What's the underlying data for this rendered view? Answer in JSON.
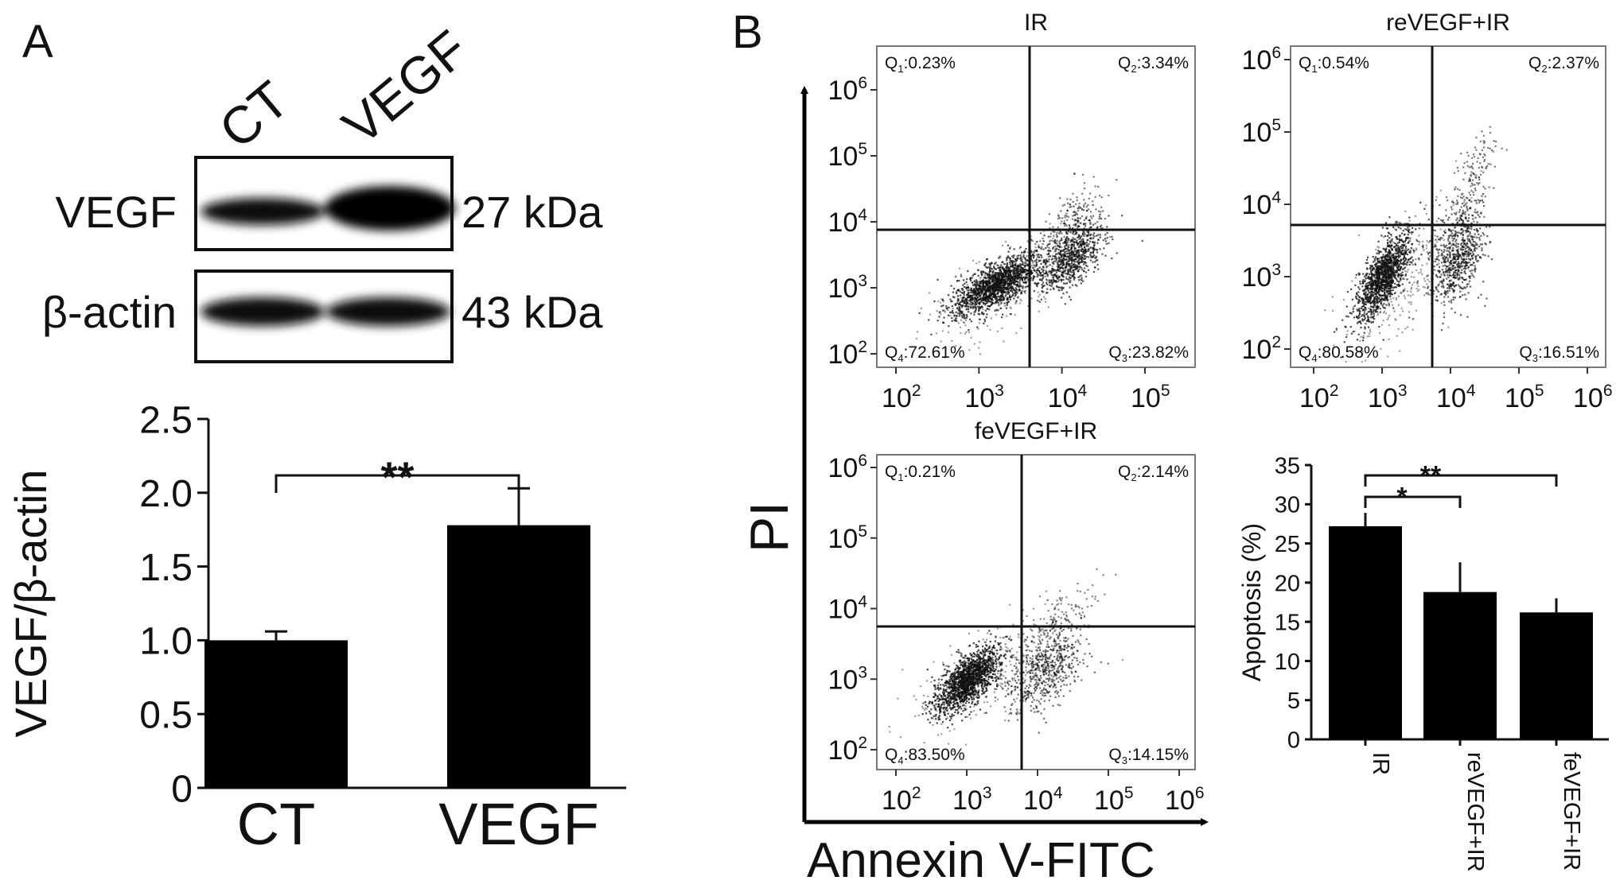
{
  "panels": {
    "a_label": "A",
    "b_label": "B"
  },
  "western_blot": {
    "lanes": [
      "CT",
      "VEGF"
    ],
    "rows": [
      {
        "protein": "VEGF",
        "size": "27 kDa"
      },
      {
        "protein": "β-actin",
        "size": "43 kDa"
      }
    ]
  },
  "flow_axes": {
    "y_label": "PI",
    "x_label": "Annexin V-FITC",
    "tick_base": "10"
  },
  "chart_data": [
    {
      "type": "bar",
      "title": "",
      "categories": [
        "CT",
        "VEGF"
      ],
      "values": [
        1.0,
        1.78
      ],
      "errors": [
        0.06,
        0.25
      ],
      "ylabel": "VEGF/β-actin",
      "xlabel": "",
      "ylim": [
        0,
        2.5
      ],
      "yticks": [
        "0",
        "0.5",
        "1.0",
        "1.5",
        "2.0",
        "2.5"
      ],
      "significance": [
        {
          "from": 0,
          "to": 1,
          "label": "**"
        }
      ]
    },
    {
      "type": "scatter",
      "title": "IR",
      "xscale": "log",
      "yscale": "log",
      "x_ticks": [
        2,
        3,
        4,
        5
      ],
      "y_ticks": [
        2,
        3,
        4,
        5,
        6
      ],
      "quadrants": [
        {
          "name": "Q1",
          "sub": "1",
          "value": ":0.23%"
        },
        {
          "name": "Q2",
          "sub": "2",
          "value": ":3.34%"
        },
        {
          "name": "Q3",
          "sub": "3",
          "value": ":23.82%"
        },
        {
          "name": "Q4",
          "sub": "4",
          "value": ":72.61%"
        }
      ]
    },
    {
      "type": "scatter",
      "title": "reVEGF+IR",
      "xscale": "log",
      "yscale": "log",
      "x_ticks": [
        2,
        3,
        4,
        5,
        6
      ],
      "y_ticks": [
        2,
        3,
        4,
        5,
        6
      ],
      "quadrants": [
        {
          "name": "Q1",
          "sub": "1",
          "value": ":0.54%"
        },
        {
          "name": "Q2",
          "sub": "2",
          "value": ":2.37%"
        },
        {
          "name": "Q3",
          "sub": "3",
          "value": ":16.51%"
        },
        {
          "name": "Q4",
          "sub": "4",
          "value": ":80.58%"
        }
      ]
    },
    {
      "type": "scatter",
      "title": "feVEGF+IR",
      "xscale": "log",
      "yscale": "log",
      "x_ticks": [
        2,
        3,
        4,
        5,
        6
      ],
      "y_ticks": [
        2,
        3,
        4,
        5,
        6
      ],
      "quadrants": [
        {
          "name": "Q1",
          "sub": "1",
          "value": ":0.21%"
        },
        {
          "name": "Q2",
          "sub": "2",
          "value": ":2.14%"
        },
        {
          "name": "Q3",
          "sub": "3",
          "value": ":14.15%"
        },
        {
          "name": "Q4",
          "sub": "4",
          "value": ":83.50%"
        }
      ]
    },
    {
      "type": "bar",
      "title": "",
      "categories": [
        "IR",
        "reVEGF+IR",
        "feVEGF+IR"
      ],
      "values": [
        27.2,
        18.8,
        16.2
      ],
      "errors": [
        1.7,
        3.8,
        1.8
      ],
      "ylabel": "Apoptosis (%)",
      "xlabel": "",
      "ylim": [
        0,
        35
      ],
      "yticks": [
        "0",
        "5",
        "10",
        "15",
        "20",
        "25",
        "30",
        "35"
      ],
      "significance": [
        {
          "from": 0,
          "to": 1,
          "label": "*"
        },
        {
          "from": 0,
          "to": 2,
          "label": "**"
        }
      ]
    }
  ]
}
